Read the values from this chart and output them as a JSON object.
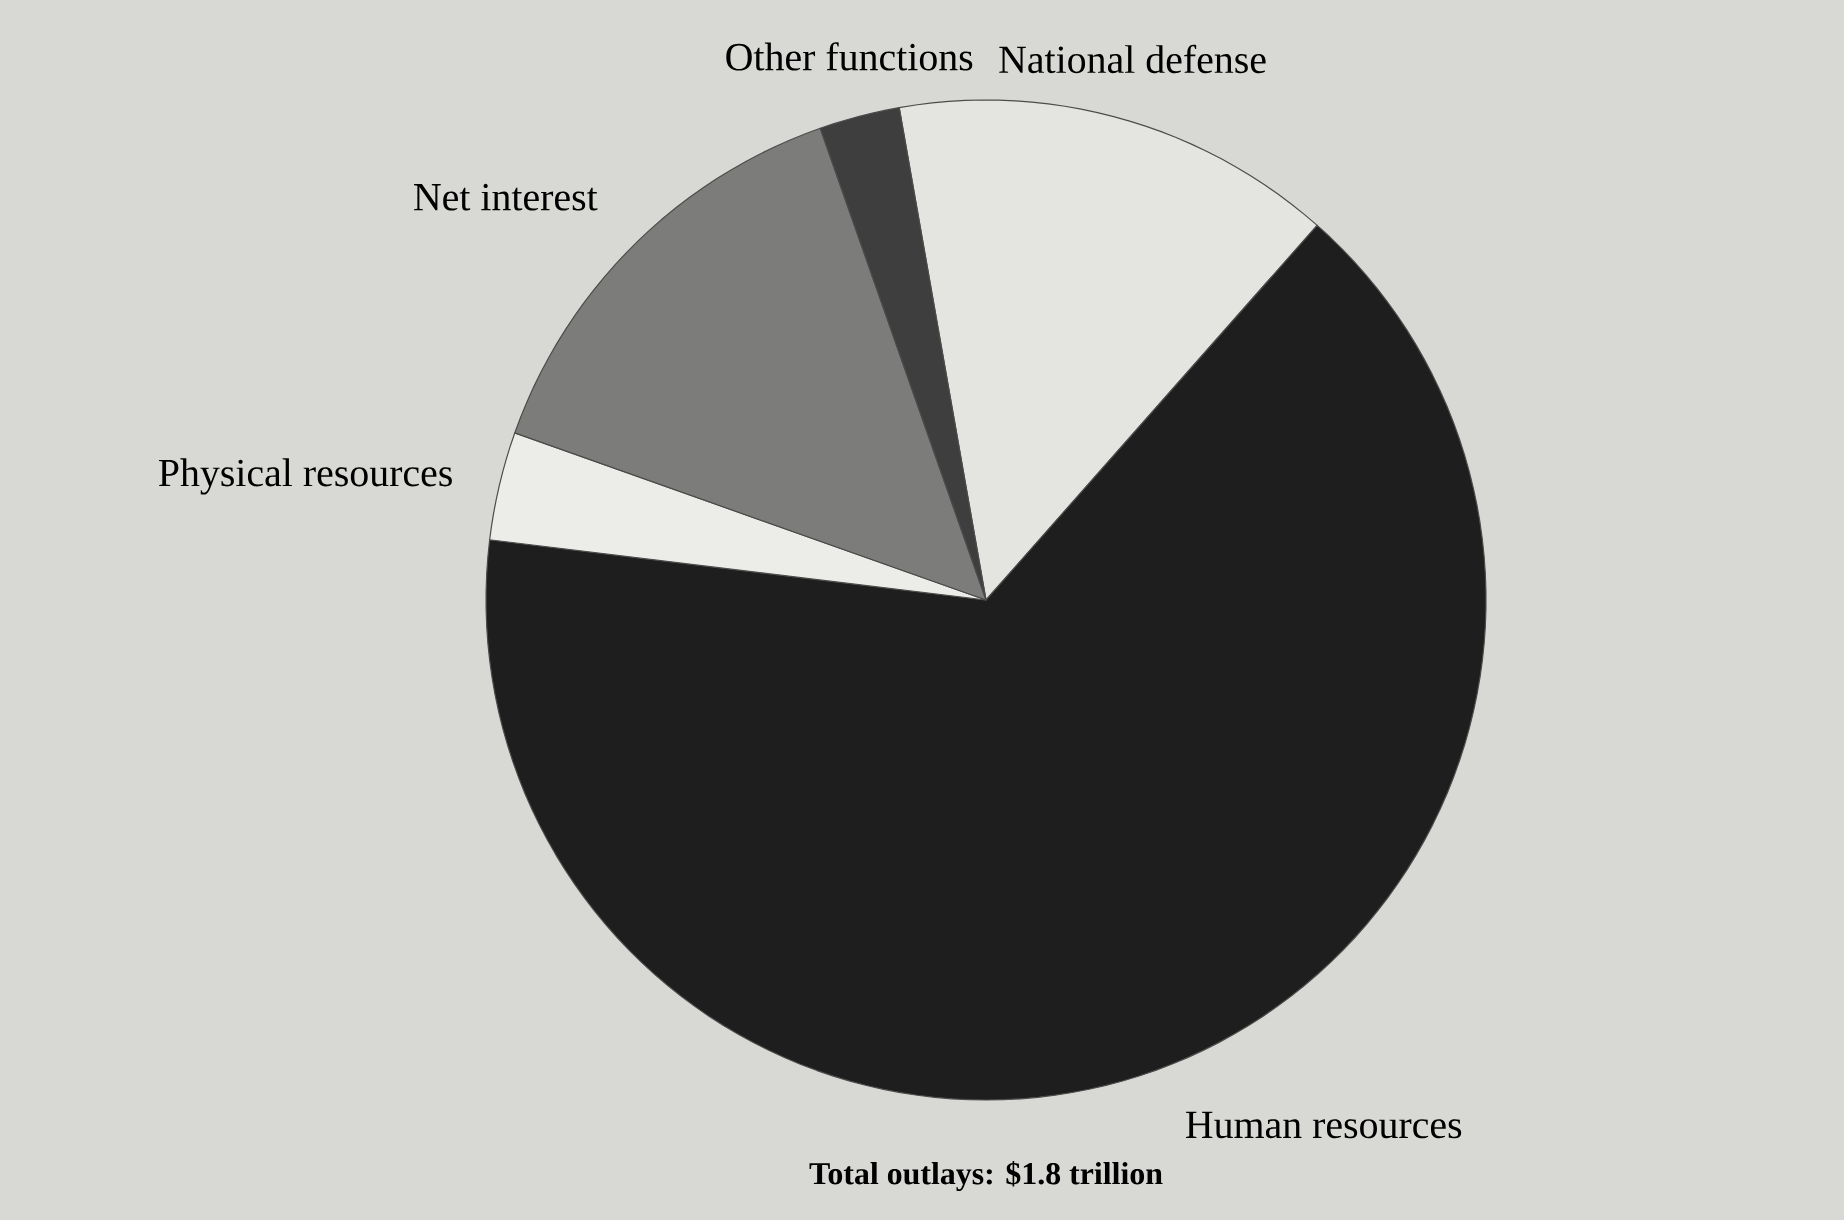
{
  "chart_data": {
    "type": "pie",
    "categories": [
      "National defense",
      "Human resources",
      "Physical resources",
      "Net interest",
      "Other functions"
    ],
    "values": [
      14.3,
      65.4,
      3.5,
      14.2,
      2.6
    ],
    "colors": [
      "#e4e4e0",
      "#1e1e1e",
      "#ecece8",
      "#7c7c7a",
      "#3e3e3e"
    ],
    "annotations": [
      "**Total outlays: $1.8 trillion**"
    ]
  }
}
